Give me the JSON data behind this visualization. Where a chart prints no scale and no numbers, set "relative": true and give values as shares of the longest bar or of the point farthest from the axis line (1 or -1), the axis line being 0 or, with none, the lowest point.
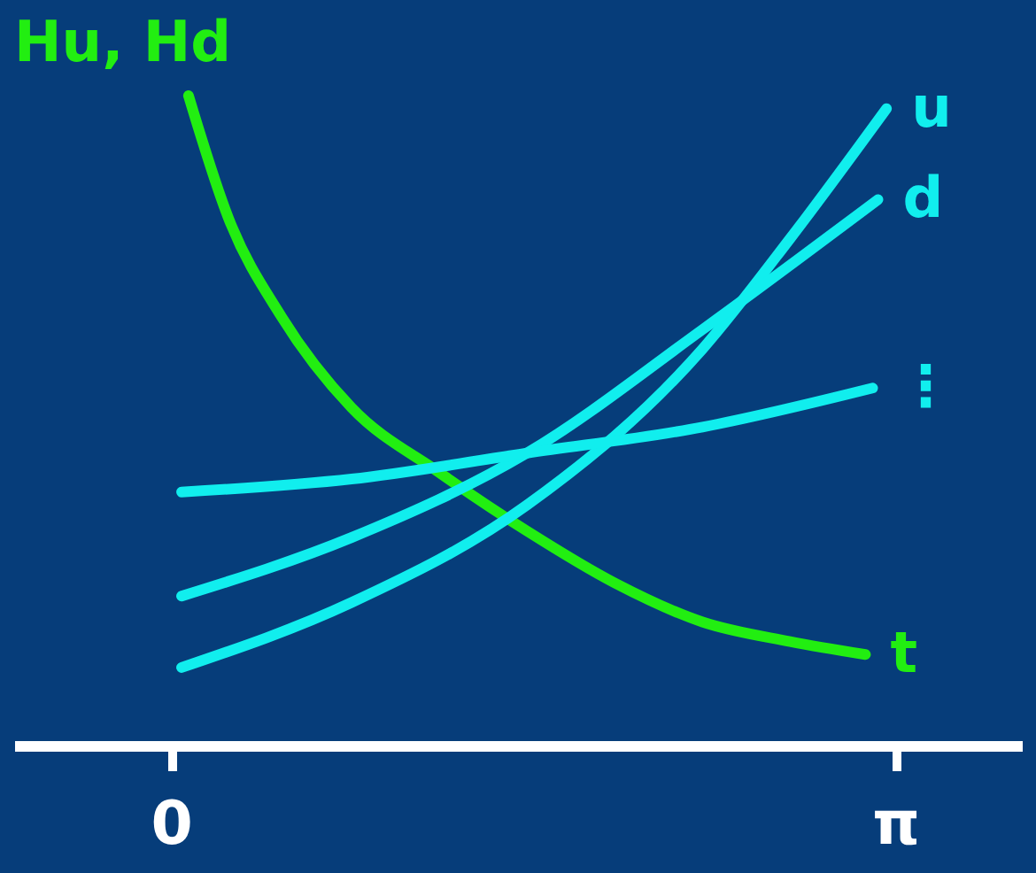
{
  "chart_data": {
    "type": "line",
    "relative": true,
    "ylabel": "Hu, Hd",
    "xlim": [
      -0.68,
      3.69
    ],
    "xticks": [
      {
        "value": 0,
        "label": "0"
      },
      {
        "value": 3.14159,
        "label": "π"
      }
    ],
    "grid": false,
    "marker": "none",
    "line_style": "solid",
    "series": [
      {
        "name": "t",
        "color": "#22ee11",
        "x": [
          0.076,
          0.251,
          0.479,
          0.783,
          1.164,
          1.544,
          1.925,
          2.305,
          2.685,
          3.012
        ],
        "values": [
          1,
          0.81,
          0.66,
          0.52,
          0.42,
          0.33,
          0.25,
          0.19,
          0.16,
          0.14
        ]
      },
      {
        "name": "u",
        "color": "#11eeee",
        "x": [
          0.046,
          0.783,
          1.544,
          2.305,
          2.685,
          3.103
        ],
        "values": [
          0.12,
          0.22,
          0.37,
          0.61,
          0.78,
          0.98
        ]
      },
      {
        "name": "d",
        "color": "#11eeee",
        "x": [
          0.046,
          0.783,
          1.544,
          2.305,
          3.066
        ],
        "values": [
          0.23,
          0.32,
          0.45,
          0.64,
          0.84
        ]
      },
      {
        "name": "⋮",
        "color": "#11eeee",
        "x": [
          0.046,
          0.783,
          1.544,
          2.305,
          3.043
        ],
        "values": [
          0.39,
          0.41,
          0.45,
          0.49,
          0.55
        ]
      }
    ]
  }
}
